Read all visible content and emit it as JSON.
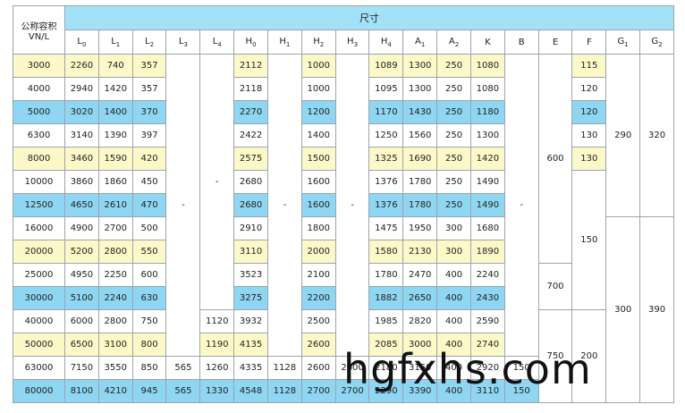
{
  "table": {
    "corner": "公称容积 VN/L",
    "group": "尺寸",
    "columns": [
      {
        "label": "L",
        "sub": "0"
      },
      {
        "label": "L",
        "sub": "1"
      },
      {
        "label": "L",
        "sub": "2"
      },
      {
        "label": "L",
        "sub": "3"
      },
      {
        "label": "L",
        "sub": "4"
      },
      {
        "label": "H",
        "sub": "0"
      },
      {
        "label": "H",
        "sub": "1"
      },
      {
        "label": "H",
        "sub": "2"
      },
      {
        "label": "H",
        "sub": "3"
      },
      {
        "label": "H",
        "sub": "4"
      },
      {
        "label": "A",
        "sub": "1"
      },
      {
        "label": "A",
        "sub": "2"
      },
      {
        "label": "K"
      },
      {
        "label": "B"
      },
      {
        "label": "E"
      },
      {
        "label": "F"
      },
      {
        "label": "G",
        "sub": "1"
      },
      {
        "label": "G",
        "sub": "2"
      }
    ],
    "rows": [
      [
        "3000",
        "2260",
        "740",
        "357",
        "-",
        "-",
        "2112",
        "-",
        "1000",
        "-",
        "1089",
        "1300",
        "250",
        "1080",
        "-",
        "600",
        "115",
        "290",
        "320"
      ],
      [
        "4000",
        "2940",
        "1420",
        "357",
        null,
        null,
        "2118",
        null,
        "1000",
        null,
        "1095",
        "1300",
        "250",
        "1080",
        null,
        null,
        "120",
        null,
        null
      ],
      [
        "5000",
        "3020",
        "1400",
        "370",
        null,
        null,
        "2270",
        null,
        "1200",
        null,
        "1170",
        "1430",
        "250",
        "1180",
        null,
        null,
        "120",
        null,
        null
      ],
      [
        "6300",
        "3140",
        "1390",
        "397",
        null,
        null,
        "2422",
        null,
        "1400",
        null,
        "1250",
        "1560",
        "250",
        "1300",
        null,
        null,
        "130",
        null,
        null
      ],
      [
        "8000",
        "3460",
        "1590",
        "420",
        null,
        null,
        "2575",
        null,
        "1500",
        null,
        "1325",
        "1690",
        "250",
        "1420",
        null,
        null,
        "130",
        null,
        null
      ],
      [
        "10000",
        "3860",
        "1860",
        "450",
        null,
        null,
        "2680",
        null,
        "1600",
        null,
        "1376",
        "1780",
        "250",
        "1490",
        null,
        null,
        "150",
        null,
        null
      ],
      [
        "12500",
        "4650",
        "2610",
        "470",
        null,
        null,
        "2680",
        null,
        "1600",
        null,
        "1376",
        "1780",
        "250",
        "1490",
        null,
        null,
        null,
        null,
        null
      ],
      [
        "16000",
        "4900",
        "2700",
        "500",
        null,
        null,
        "2910",
        null,
        "1800",
        null,
        "1475",
        "1950",
        "300",
        "1680",
        null,
        null,
        null,
        "300",
        "390"
      ],
      [
        "20000",
        "5200",
        "2800",
        "550",
        null,
        null,
        "3110",
        null,
        "2000",
        null,
        "1580",
        "2130",
        "300",
        "1890",
        null,
        null,
        null,
        null,
        null
      ],
      [
        "25000",
        "4950",
        "2250",
        "600",
        null,
        null,
        "3523",
        null,
        "2100",
        null,
        "1780",
        "2470",
        "400",
        "2240",
        null,
        "700",
        null,
        null,
        null
      ],
      [
        "30000",
        "5100",
        "2240",
        "630",
        null,
        null,
        "3275",
        null,
        "2200",
        null,
        "1882",
        "2650",
        "400",
        "2430",
        null,
        null,
        null,
        null,
        null
      ],
      [
        "40000",
        "6000",
        "2800",
        "750",
        null,
        "1120",
        "3932",
        null,
        "2500",
        null,
        "1985",
        "2820",
        "400",
        "2590",
        null,
        "750",
        "200",
        null,
        null
      ],
      [
        "50000",
        "6500",
        "3100",
        "800",
        null,
        "1190",
        "4135",
        null,
        "2600",
        null,
        "2085",
        "3000",
        "400",
        "2740",
        null,
        null,
        null,
        null,
        null
      ],
      [
        "63000",
        "7150",
        "3550",
        "850",
        "565",
        "1260",
        "4335",
        "1128",
        "2600",
        "2600",
        "2180",
        "3150",
        "400",
        "2920",
        "150",
        null,
        null,
        null,
        null
      ],
      [
        "80000",
        "8100",
        "4210",
        "945",
        "565",
        "1330",
        "4548",
        "1128",
        "2700",
        "2700",
        "2290",
        "3390",
        "400",
        "3110",
        "150",
        null,
        null,
        null,
        null
      ]
    ],
    "watermark": "hgfxhs.com"
  }
}
